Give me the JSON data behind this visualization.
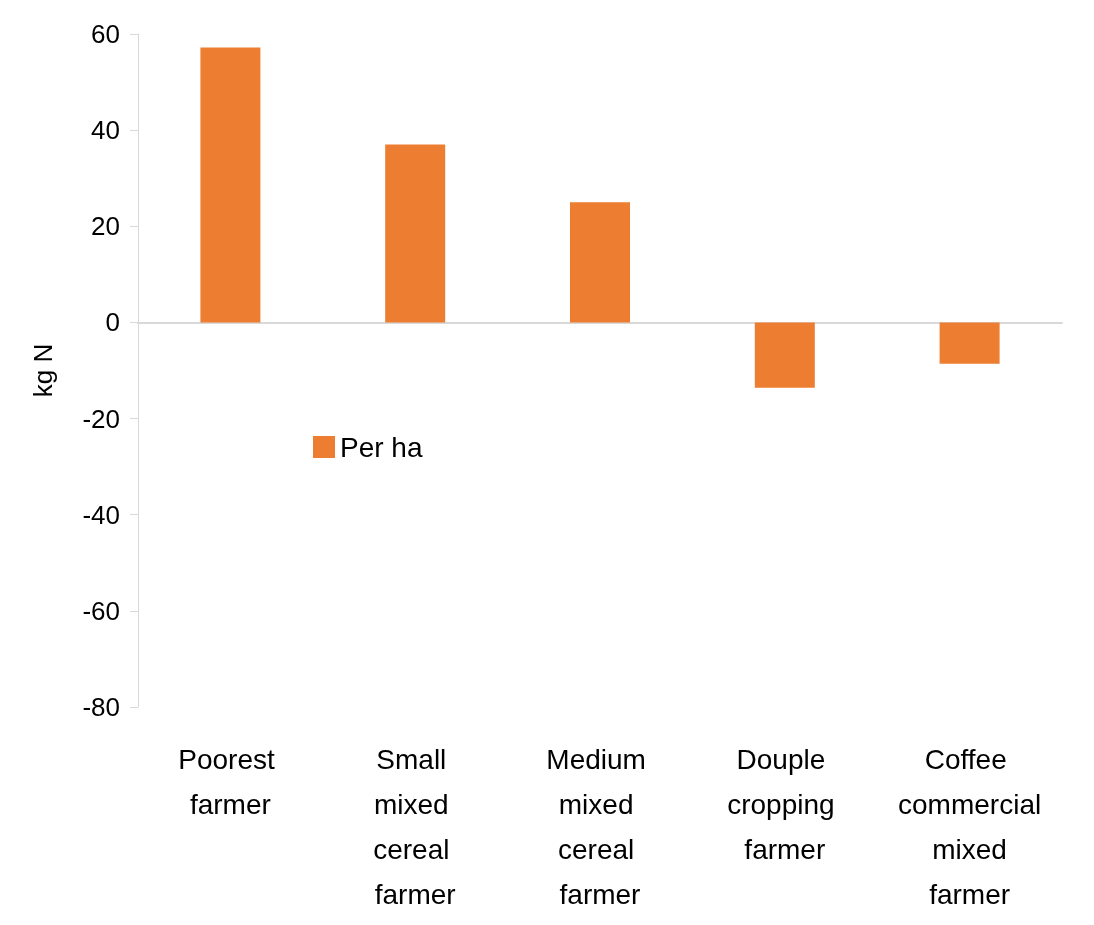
{
  "chart_data": {
    "type": "bar",
    "ylabel": "kg N",
    "categories": [
      "Poorest farmer",
      "Small mixed cereal farmer",
      "Medium mixed cereal farmer",
      "Douple cropping farmer",
      "Coffee commercial mixed farmer"
    ],
    "series": [
      {
        "name": "Per ha",
        "color": "#ed7d31",
        "values": [
          57.2,
          37,
          25,
          -13.6,
          -8.6
        ]
      }
    ],
    "ylim": [
      -80,
      60
    ],
    "yticks": [
      -80,
      -60,
      -40,
      -20,
      0,
      20,
      40,
      60
    ],
    "legend": "left"
  }
}
